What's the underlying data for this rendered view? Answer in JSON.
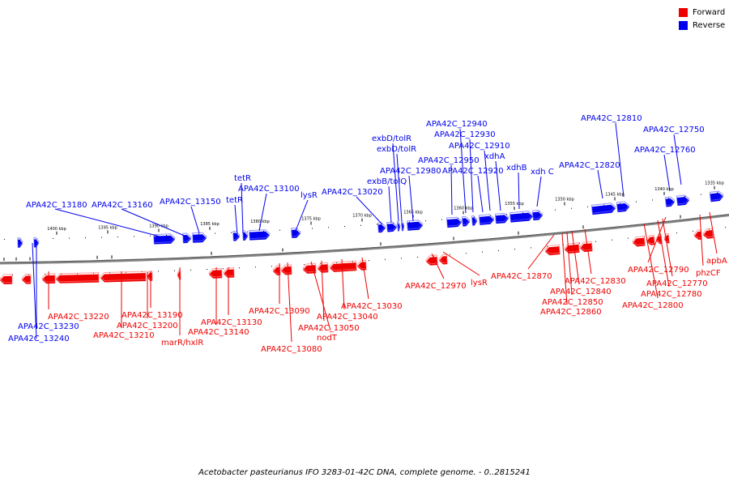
{
  "legend": {
    "forward": {
      "label": "Forward",
      "color": "#ee0000"
    },
    "reverse": {
      "label": "Reverse",
      "color": "#0000ee"
    }
  },
  "caption": "Acetobacter pasteurianus IFO 3283-01-42C DNA, complete genome. - 0..2815241",
  "chart_data": {
    "type": "genome_map",
    "ticks": [
      {
        "label": "1400 kbp"
      },
      {
        "label": "1395 kbp"
      },
      {
        "label": "1390 kbp"
      },
      {
        "label": "1385 kbp"
      },
      {
        "label": "1380 kbp"
      },
      {
        "label": "1375 kbp"
      },
      {
        "label": "1370 kbp"
      },
      {
        "label": "1365 kbp"
      },
      {
        "label": "1360 kbp"
      },
      {
        "label": "1355 kbp"
      },
      {
        "label": "1350 kbp"
      },
      {
        "label": "1345 kbp"
      },
      {
        "label": "1340 kbp"
      },
      {
        "label": "1335 kbp"
      }
    ],
    "reverse_labels": [
      "APA42C_13180",
      "APA42C_13160",
      "APA42C_13150",
      "tetR",
      "tetR",
      "APA42C_13100",
      "lysR",
      "APA42C_13020",
      "exbB/tolQ",
      "APA42C_12980",
      "exbD/tolR",
      "exbD/tolR",
      "APA42C_12950",
      "APA42C_12940",
      "APA42C_12930",
      "APA42C_12920",
      "APA42C_12910",
      "xdhA",
      "xdhB",
      "xdh C",
      "APA42C_12820",
      "APA42C_12810",
      "APA42C_12760",
      "APA42C_12750",
      "APA42C_13230",
      "APA42C_13240"
    ],
    "forward_labels": [
      "APA42C_13220",
      "APA42C_13210",
      "APA42C_13200",
      "APA42C_13190",
      "marR/hxlR",
      "APA42C_13140",
      "APA42C_13130",
      "APA42C_13090",
      "APA42C_13080",
      "nodT",
      "APA42C_13050",
      "APA42C_13040",
      "APA42C_13030",
      "APA42C_12970",
      "lysR",
      "APA42C_12870",
      "APA42C_12860",
      "APA42C_12850",
      "APA42C_12840",
      "APA42C_12830",
      "APA42C_12800",
      "APA42C_12780",
      "APA42C_12770",
      "APA42C_12790",
      "phzCF",
      "apbA"
    ]
  }
}
